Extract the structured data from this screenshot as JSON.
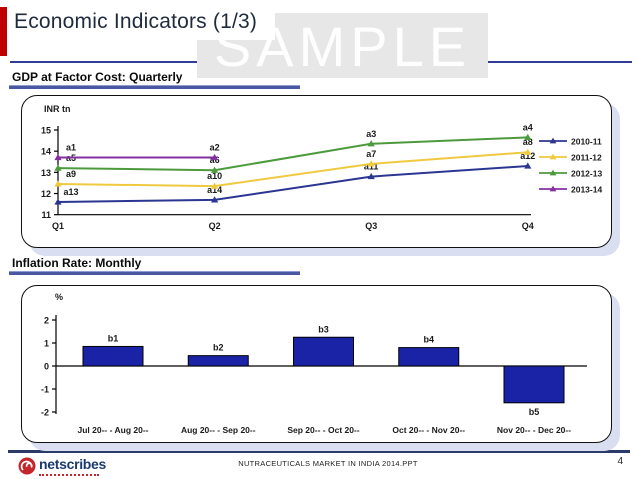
{
  "header": {
    "title": "Economic Indicators (1/3)",
    "watermark": "SAMPLE"
  },
  "sections": {
    "gdp": {
      "title": "GDP at Factor Cost: Quarterly"
    },
    "inflation": {
      "title": "Inflation Rate: Monthly"
    }
  },
  "footer": {
    "logo": "netscribes",
    "document": "NUTRACEUTICALS MARKET IN INDIA 2014.PPT",
    "page": "4"
  },
  "colors": {
    "accent_red": "#C00000",
    "separator_navy": "#303D94",
    "section_underline": "#4A57A3",
    "footer_line": "#2B3A68",
    "logo_navy": "#1D3A6E",
    "logo_red": "#C5262C",
    "shadow": "#D9DFF1"
  },
  "chart_data": [
    {
      "type": "line",
      "title": "GDP at Factor Cost: Quarterly",
      "ylabel": "INR tn",
      "xlabel": "",
      "categories": [
        "Q1",
        "Q2",
        "Q3",
        "Q4"
      ],
      "yticks": [
        15,
        14,
        13,
        12,
        11
      ],
      "ylim": [
        11,
        15
      ],
      "grid": false,
      "legend_position": "right",
      "marker": "triangle",
      "series": [
        {
          "name": "2010-11",
          "color": "#2B3693",
          "values": [
            11.6,
            11.7,
            12.8,
            13.3
          ],
          "labels": [
            "a13",
            "a14",
            "a11",
            "a12"
          ]
        },
        {
          "name": "2011-12",
          "color": "#EFC93F",
          "values": [
            12.45,
            12.35,
            13.4,
            13.95
          ],
          "labels": [
            "a9",
            "a10",
            "a7",
            "a8"
          ]
        },
        {
          "name": "2012-13",
          "color": "#4D9A3D",
          "values": [
            13.2,
            13.1,
            14.35,
            14.65
          ],
          "labels": [
            "a5",
            "a6",
            "a3",
            "a4"
          ]
        },
        {
          "name": "2013-14",
          "color": "#8430A2",
          "values": [
            13.7,
            13.7,
            null,
            null
          ],
          "labels": [
            "a1",
            "a2",
            null,
            null
          ]
        }
      ]
    },
    {
      "type": "bar",
      "title": "Inflation Rate: Monthly",
      "ylabel": "%",
      "xlabel": "",
      "categories": [
        "Jul 20-- - Aug 20--",
        "Aug 20-- - Sep 20--",
        "Sep 20-- - Oct 20--",
        "Oct 20-- - Nov 20--",
        "Nov 20-- - Dec 20--"
      ],
      "yticks": [
        2,
        1,
        0,
        -1,
        -2
      ],
      "ylim": [
        -2,
        2
      ],
      "grid": false,
      "bar_color": "#1A23A5",
      "values": [
        0.85,
        0.45,
        1.25,
        0.8,
        -1.6
      ],
      "labels": [
        "b1",
        "b2",
        "b3",
        "b4",
        "b5"
      ]
    }
  ]
}
